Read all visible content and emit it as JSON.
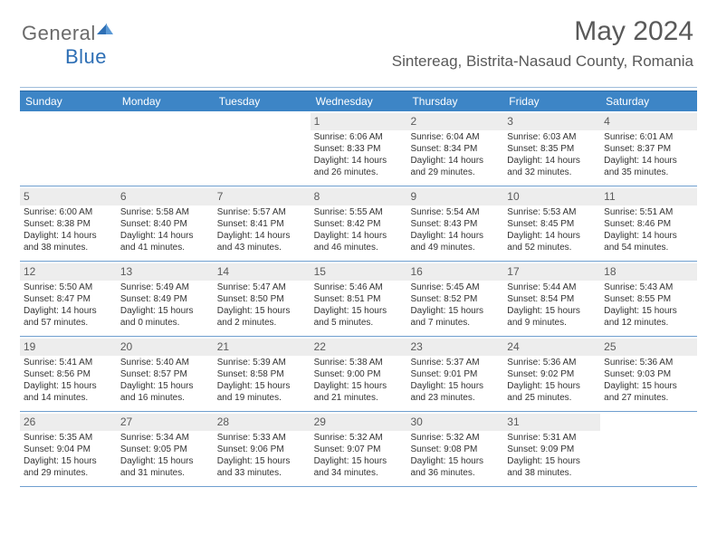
{
  "logo": {
    "text1": "General",
    "text2": "Blue"
  },
  "title": "May 2024",
  "subtitle": "Sintereag, Bistrita-Nasaud County, Romania",
  "colors": {
    "header_bg": "#3d85c6",
    "header_text": "#ffffff",
    "daynum_bg": "#ededed",
    "daynum_text": "#5a5a5a",
    "body_text": "#333333",
    "title_text": "#595959",
    "rule": "#6f9fcf"
  },
  "fonts": {
    "base_family": "Arial",
    "title_size": 30,
    "subtitle_size": 17,
    "dayhead_size": 12,
    "cell_size": 10
  },
  "dayheads": [
    "Sunday",
    "Monday",
    "Tuesday",
    "Wednesday",
    "Thursday",
    "Friday",
    "Saturday"
  ],
  "weeks": [
    [
      {
        "n": "",
        "sr": "",
        "ss": "",
        "dl": ""
      },
      {
        "n": "",
        "sr": "",
        "ss": "",
        "dl": ""
      },
      {
        "n": "",
        "sr": "",
        "ss": "",
        "dl": ""
      },
      {
        "n": "1",
        "sr": "Sunrise: 6:06 AM",
        "ss": "Sunset: 8:33 PM",
        "dl": "Daylight: 14 hours and 26 minutes."
      },
      {
        "n": "2",
        "sr": "Sunrise: 6:04 AM",
        "ss": "Sunset: 8:34 PM",
        "dl": "Daylight: 14 hours and 29 minutes."
      },
      {
        "n": "3",
        "sr": "Sunrise: 6:03 AM",
        "ss": "Sunset: 8:35 PM",
        "dl": "Daylight: 14 hours and 32 minutes."
      },
      {
        "n": "4",
        "sr": "Sunrise: 6:01 AM",
        "ss": "Sunset: 8:37 PM",
        "dl": "Daylight: 14 hours and 35 minutes."
      }
    ],
    [
      {
        "n": "5",
        "sr": "Sunrise: 6:00 AM",
        "ss": "Sunset: 8:38 PM",
        "dl": "Daylight: 14 hours and 38 minutes."
      },
      {
        "n": "6",
        "sr": "Sunrise: 5:58 AM",
        "ss": "Sunset: 8:40 PM",
        "dl": "Daylight: 14 hours and 41 minutes."
      },
      {
        "n": "7",
        "sr": "Sunrise: 5:57 AM",
        "ss": "Sunset: 8:41 PM",
        "dl": "Daylight: 14 hours and 43 minutes."
      },
      {
        "n": "8",
        "sr": "Sunrise: 5:55 AM",
        "ss": "Sunset: 8:42 PM",
        "dl": "Daylight: 14 hours and 46 minutes."
      },
      {
        "n": "9",
        "sr": "Sunrise: 5:54 AM",
        "ss": "Sunset: 8:43 PM",
        "dl": "Daylight: 14 hours and 49 minutes."
      },
      {
        "n": "10",
        "sr": "Sunrise: 5:53 AM",
        "ss": "Sunset: 8:45 PM",
        "dl": "Daylight: 14 hours and 52 minutes."
      },
      {
        "n": "11",
        "sr": "Sunrise: 5:51 AM",
        "ss": "Sunset: 8:46 PM",
        "dl": "Daylight: 14 hours and 54 minutes."
      }
    ],
    [
      {
        "n": "12",
        "sr": "Sunrise: 5:50 AM",
        "ss": "Sunset: 8:47 PM",
        "dl": "Daylight: 14 hours and 57 minutes."
      },
      {
        "n": "13",
        "sr": "Sunrise: 5:49 AM",
        "ss": "Sunset: 8:49 PM",
        "dl": "Daylight: 15 hours and 0 minutes."
      },
      {
        "n": "14",
        "sr": "Sunrise: 5:47 AM",
        "ss": "Sunset: 8:50 PM",
        "dl": "Daylight: 15 hours and 2 minutes."
      },
      {
        "n": "15",
        "sr": "Sunrise: 5:46 AM",
        "ss": "Sunset: 8:51 PM",
        "dl": "Daylight: 15 hours and 5 minutes."
      },
      {
        "n": "16",
        "sr": "Sunrise: 5:45 AM",
        "ss": "Sunset: 8:52 PM",
        "dl": "Daylight: 15 hours and 7 minutes."
      },
      {
        "n": "17",
        "sr": "Sunrise: 5:44 AM",
        "ss": "Sunset: 8:54 PM",
        "dl": "Daylight: 15 hours and 9 minutes."
      },
      {
        "n": "18",
        "sr": "Sunrise: 5:43 AM",
        "ss": "Sunset: 8:55 PM",
        "dl": "Daylight: 15 hours and 12 minutes."
      }
    ],
    [
      {
        "n": "19",
        "sr": "Sunrise: 5:41 AM",
        "ss": "Sunset: 8:56 PM",
        "dl": "Daylight: 15 hours and 14 minutes."
      },
      {
        "n": "20",
        "sr": "Sunrise: 5:40 AM",
        "ss": "Sunset: 8:57 PM",
        "dl": "Daylight: 15 hours and 16 minutes."
      },
      {
        "n": "21",
        "sr": "Sunrise: 5:39 AM",
        "ss": "Sunset: 8:58 PM",
        "dl": "Daylight: 15 hours and 19 minutes."
      },
      {
        "n": "22",
        "sr": "Sunrise: 5:38 AM",
        "ss": "Sunset: 9:00 PM",
        "dl": "Daylight: 15 hours and 21 minutes."
      },
      {
        "n": "23",
        "sr": "Sunrise: 5:37 AM",
        "ss": "Sunset: 9:01 PM",
        "dl": "Daylight: 15 hours and 23 minutes."
      },
      {
        "n": "24",
        "sr": "Sunrise: 5:36 AM",
        "ss": "Sunset: 9:02 PM",
        "dl": "Daylight: 15 hours and 25 minutes."
      },
      {
        "n": "25",
        "sr": "Sunrise: 5:36 AM",
        "ss": "Sunset: 9:03 PM",
        "dl": "Daylight: 15 hours and 27 minutes."
      }
    ],
    [
      {
        "n": "26",
        "sr": "Sunrise: 5:35 AM",
        "ss": "Sunset: 9:04 PM",
        "dl": "Daylight: 15 hours and 29 minutes."
      },
      {
        "n": "27",
        "sr": "Sunrise: 5:34 AM",
        "ss": "Sunset: 9:05 PM",
        "dl": "Daylight: 15 hours and 31 minutes."
      },
      {
        "n": "28",
        "sr": "Sunrise: 5:33 AM",
        "ss": "Sunset: 9:06 PM",
        "dl": "Daylight: 15 hours and 33 minutes."
      },
      {
        "n": "29",
        "sr": "Sunrise: 5:32 AM",
        "ss": "Sunset: 9:07 PM",
        "dl": "Daylight: 15 hours and 34 minutes."
      },
      {
        "n": "30",
        "sr": "Sunrise: 5:32 AM",
        "ss": "Sunset: 9:08 PM",
        "dl": "Daylight: 15 hours and 36 minutes."
      },
      {
        "n": "31",
        "sr": "Sunrise: 5:31 AM",
        "ss": "Sunset: 9:09 PM",
        "dl": "Daylight: 15 hours and 38 minutes."
      },
      {
        "n": "",
        "sr": "",
        "ss": "",
        "dl": ""
      }
    ]
  ]
}
